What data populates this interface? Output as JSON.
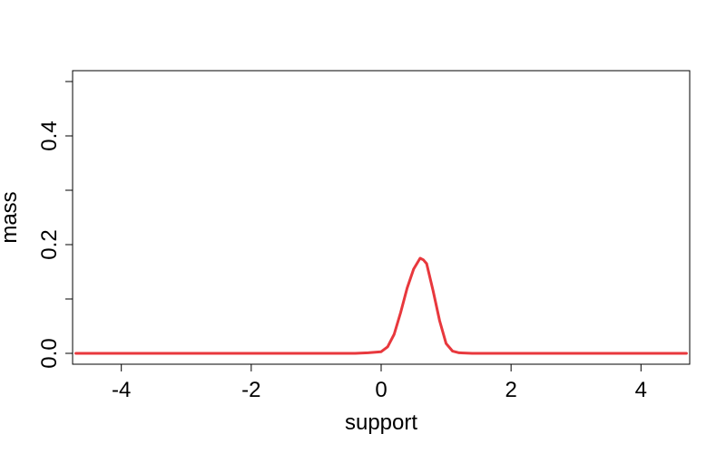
{
  "chart_data": {
    "type": "line",
    "title": "",
    "xlabel": "support",
    "ylabel": "mass",
    "xlim": [
      -4.75,
      4.75
    ],
    "ylim": [
      -0.02,
      0.52
    ],
    "x_ticks": [
      -4,
      -2,
      0,
      2,
      4
    ],
    "x_tick_labels": [
      "-4",
      "-2",
      "0",
      "2",
      "4"
    ],
    "y_ticks": [
      0.0,
      0.1,
      0.2,
      0.3,
      0.4,
      0.5
    ],
    "y_tick_labels": [
      "0.0",
      "",
      "0.2",
      "",
      "0.4",
      ""
    ],
    "grid": false,
    "legend": "none",
    "series": [
      {
        "color": "#e8383d",
        "x": [
          -4.7,
          -4.0,
          -3.0,
          -2.0,
          -1.0,
          -0.4,
          -0.2,
          0.0,
          0.1,
          0.2,
          0.3,
          0.4,
          0.5,
          0.6,
          0.65,
          0.7,
          0.8,
          0.9,
          1.0,
          1.1,
          1.2,
          1.4,
          2.0,
          3.0,
          4.0,
          4.7
        ],
        "y": [
          0.0,
          0.0,
          0.0,
          0.0,
          0.0,
          0.0,
          0.001,
          0.003,
          0.012,
          0.035,
          0.075,
          0.12,
          0.155,
          0.175,
          0.172,
          0.165,
          0.115,
          0.06,
          0.018,
          0.004,
          0.001,
          0.0,
          0.0,
          0.0,
          0.0,
          0.0
        ]
      }
    ]
  }
}
